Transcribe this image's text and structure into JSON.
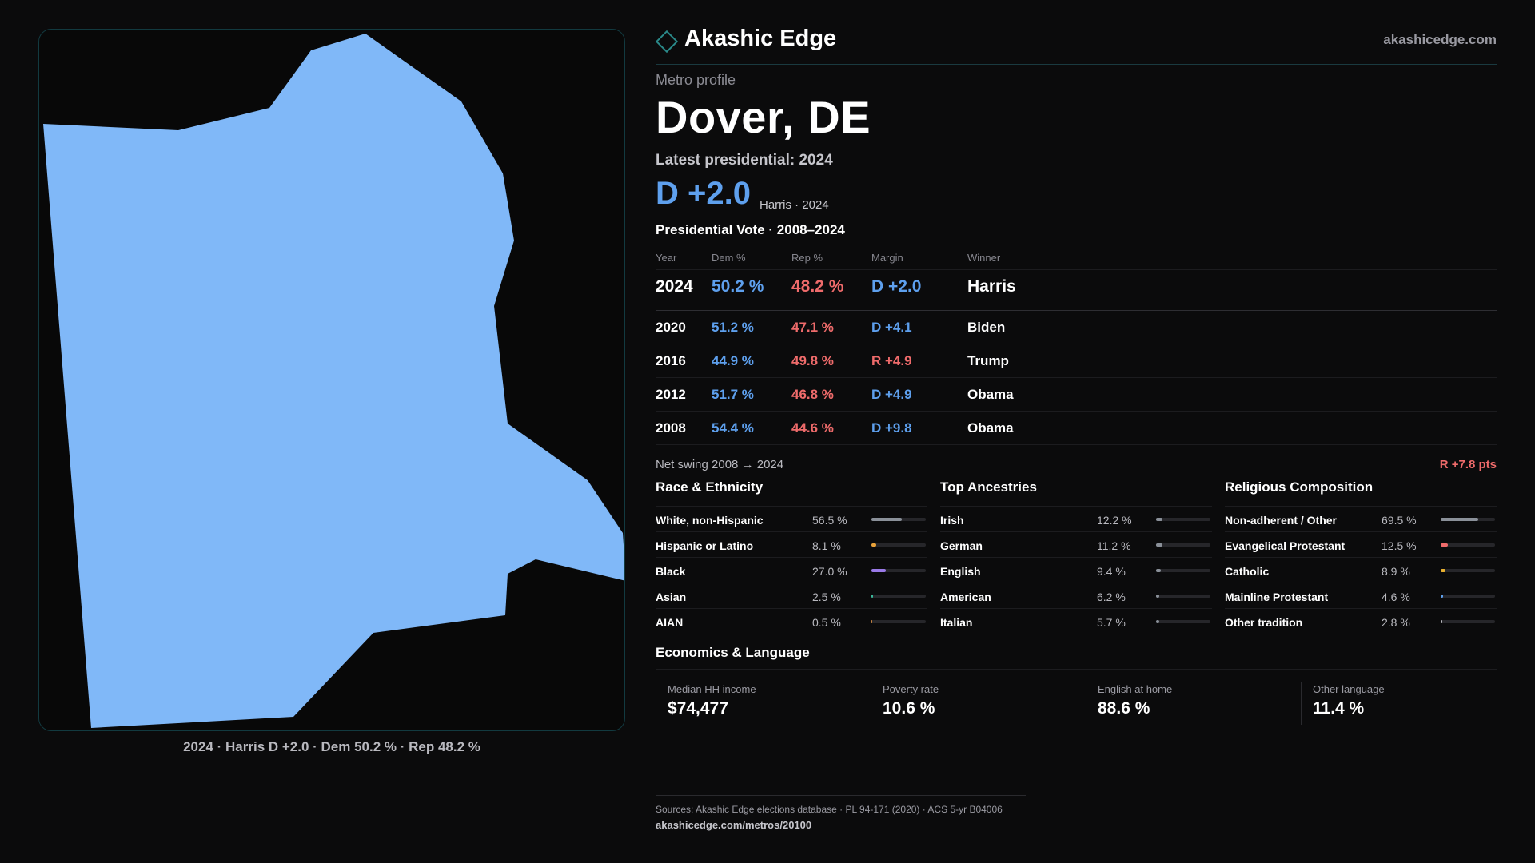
{
  "map": {
    "caption": "2024 · Harris D +2.0 · Dem 50.2 % · Rep 48.2 %",
    "fill_color": "#80b8f8"
  },
  "header": {
    "brand": "Akashic Edge",
    "site": "akashicedge.com",
    "logo_icon": "diamond-outline"
  },
  "profile": {
    "kicker": "Metro profile",
    "title": "Dover, DE",
    "latest_label": "Latest presidential: 2024",
    "margin_big": "D +2.0",
    "margin_sub": "Harris · 2024"
  },
  "vote": {
    "section_title": "Presidential Vote · 2008–2024",
    "headers": {
      "year": "Year",
      "dem": "Dem %",
      "rep": "Rep %",
      "margin": "Margin",
      "winner": "Winner"
    },
    "rows": [
      {
        "year": "2024",
        "dem": "50.2 %",
        "rep": "48.2 %",
        "margin": "D +2.0",
        "winner": "Harris"
      },
      {
        "year": "2020",
        "dem": "51.2 %",
        "rep": "47.1 %",
        "margin": "D +4.1",
        "winner": "Biden"
      },
      {
        "year": "2016",
        "dem": "44.9 %",
        "rep": "49.8 %",
        "margin": "R +4.9",
        "winner": "Trump"
      },
      {
        "year": "2012",
        "dem": "51.7 %",
        "rep": "46.8 %",
        "margin": "D +4.9",
        "winner": "Obama"
      },
      {
        "year": "2008",
        "dem": "54.4 %",
        "rep": "44.6 %",
        "margin": "D +9.8",
        "winner": "Obama"
      }
    ],
    "swing_label": "Net swing 2008 → 2024",
    "swing_value": "R +7.8 pts"
  },
  "race": {
    "title": "Race & Ethnicity",
    "rows": [
      {
        "label": "White, non-Hispanic",
        "value": "56.5 %",
        "pct": 56.5,
        "color": "#8a9099"
      },
      {
        "label": "Hispanic or Latino",
        "value": "8.1 %",
        "pct": 8.1,
        "color": "#e8a23a"
      },
      {
        "label": "Black",
        "value": "27.0 %",
        "pct": 27.0,
        "color": "#9a7ae8"
      },
      {
        "label": "Asian",
        "value": "2.5 %",
        "pct": 2.5,
        "color": "#3ab89a"
      },
      {
        "label": "AIAN",
        "value": "0.5 %",
        "pct": 0.5,
        "color": "#c08040"
      }
    ]
  },
  "ancestry": {
    "title": "Top Ancestries",
    "rows": [
      {
        "label": "Irish",
        "value": "12.2 %",
        "pct": 12.2,
        "color": "#8a9099"
      },
      {
        "label": "German",
        "value": "11.2 %",
        "pct": 11.2,
        "color": "#8a9099"
      },
      {
        "label": "English",
        "value": "9.4 %",
        "pct": 9.4,
        "color": "#8a9099"
      },
      {
        "label": "American",
        "value": "6.2 %",
        "pct": 6.2,
        "color": "#8a9099"
      },
      {
        "label": "Italian",
        "value": "5.7 %",
        "pct": 5.7,
        "color": "#8a9099"
      }
    ]
  },
  "religion": {
    "title": "Religious Composition",
    "rows": [
      {
        "label": "Non-adherent / Other",
        "value": "69.5 %",
        "pct": 69.5,
        "color": "#8a9099"
      },
      {
        "label": "Evangelical Protestant",
        "value": "12.5 %",
        "pct": 12.5,
        "color": "#ef6b6b"
      },
      {
        "label": "Catholic",
        "value": "8.9 %",
        "pct": 8.9,
        "color": "#e8b030"
      },
      {
        "label": "Mainline Protestant",
        "value": "4.6 %",
        "pct": 4.6,
        "color": "#5ea0ee"
      },
      {
        "label": "Other tradition",
        "value": "2.8 %",
        "pct": 2.8,
        "color": "#b9b9bf"
      }
    ]
  },
  "economics": {
    "title": "Economics & Language",
    "cards": [
      {
        "label": "Median HH income",
        "value": "$74,477"
      },
      {
        "label": "Poverty rate",
        "value": "10.6 %"
      },
      {
        "label": "English at home",
        "value": "88.6 %"
      },
      {
        "label": "Other language",
        "value": "11.4 %"
      }
    ]
  },
  "footer": {
    "sources": "Sources: Akashic Edge elections database · PL 94-171 (2020) · ACS 5-yr B04006",
    "url": "akashicedge.com/metros/20100"
  },
  "colors": {
    "dem": "#5ea0ee",
    "rep": "#ef6b6b",
    "accent": "#2a8a8a"
  }
}
